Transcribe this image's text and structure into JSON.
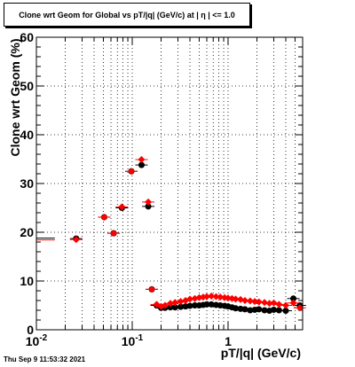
{
  "chart_data": {
    "type": "scatter",
    "title": "Clone wrt Geom for Global vs pT/|q| (GeV/c) at |  η | <= 1.0",
    "xlabel": "pT/|q| (GeV/c)",
    "ylabel": "Clone wrt Geom (%)",
    "x_scale": "log",
    "xlim": [
      0.01,
      6
    ],
    "ylim": [
      0,
      60
    ],
    "grid": true,
    "x_tick_labels": [
      "10^-2",
      "10^-1",
      "1"
    ],
    "y_tick_labels": [
      "0",
      "10",
      "20",
      "30",
      "40",
      "50",
      "60"
    ],
    "y_tick_values": [
      0,
      10,
      20,
      30,
      40,
      50,
      60
    ],
    "timestamp": "Thu Sep  9 11:53:32 2021",
    "series": [
      {
        "color": "#000000",
        "marker": "circle",
        "points": [
          [
            0.015,
            18.8
          ],
          [
            0.026,
            18.7
          ],
          [
            0.051,
            23.1
          ],
          [
            0.064,
            19.8
          ],
          [
            0.078,
            25.0
          ],
          [
            0.098,
            32.5
          ],
          [
            0.125,
            33.8
          ],
          [
            0.147,
            25.3
          ],
          [
            0.16,
            8.3
          ],
          [
            0.18,
            5.0
          ],
          [
            0.2,
            4.5
          ],
          [
            0.22,
            4.5
          ],
          [
            0.25,
            4.6
          ],
          [
            0.28,
            4.6
          ],
          [
            0.32,
            4.7
          ],
          [
            0.36,
            4.8
          ],
          [
            0.4,
            4.9
          ],
          [
            0.45,
            5.0
          ],
          [
            0.5,
            5.0
          ],
          [
            0.55,
            5.1
          ],
          [
            0.6,
            5.2
          ],
          [
            0.67,
            5.2
          ],
          [
            0.75,
            5.1
          ],
          [
            0.83,
            5.0
          ],
          [
            0.92,
            4.9
          ],
          [
            1.0,
            4.8
          ],
          [
            1.1,
            4.6
          ],
          [
            1.2,
            4.4
          ],
          [
            1.35,
            4.3
          ],
          [
            1.5,
            4.2
          ],
          [
            1.7,
            4.0
          ],
          [
            1.9,
            4.1
          ],
          [
            2.1,
            4.2
          ],
          [
            2.4,
            4.0
          ],
          [
            2.7,
            3.9
          ],
          [
            3.0,
            4.1
          ],
          [
            3.4,
            4.0
          ],
          [
            4.0,
            3.9
          ],
          [
            4.8,
            6.4
          ],
          [
            5.6,
            5.0
          ]
        ]
      },
      {
        "color": "#ff0000",
        "marker": "diamond",
        "points": [
          [
            0.015,
            18.8
          ],
          [
            0.026,
            18.5
          ],
          [
            0.051,
            23.1
          ],
          [
            0.064,
            19.8
          ],
          [
            0.078,
            25.2
          ],
          [
            0.098,
            32.5
          ],
          [
            0.125,
            34.9
          ],
          [
            0.147,
            26.2
          ],
          [
            0.16,
            8.3
          ],
          [
            0.18,
            5.2
          ],
          [
            0.2,
            4.8
          ],
          [
            0.22,
            5.0
          ],
          [
            0.25,
            5.4
          ],
          [
            0.28,
            5.6
          ],
          [
            0.32,
            5.8
          ],
          [
            0.36,
            6.0
          ],
          [
            0.4,
            6.3
          ],
          [
            0.45,
            6.4
          ],
          [
            0.5,
            6.6
          ],
          [
            0.55,
            6.7
          ],
          [
            0.6,
            6.8
          ],
          [
            0.67,
            6.9
          ],
          [
            0.75,
            6.8
          ],
          [
            0.83,
            6.7
          ],
          [
            0.92,
            6.6
          ],
          [
            1.0,
            6.5
          ],
          [
            1.1,
            6.4
          ],
          [
            1.2,
            6.3
          ],
          [
            1.35,
            6.2
          ],
          [
            1.5,
            6.0
          ],
          [
            1.7,
            5.9
          ],
          [
            1.9,
            5.8
          ],
          [
            2.1,
            5.7
          ],
          [
            2.4,
            5.6
          ],
          [
            2.7,
            5.4
          ],
          [
            3.0,
            5.5
          ],
          [
            3.4,
            5.2
          ],
          [
            4.0,
            5.0
          ],
          [
            4.8,
            5.5
          ],
          [
            5.6,
            4.5
          ]
        ]
      }
    ]
  }
}
